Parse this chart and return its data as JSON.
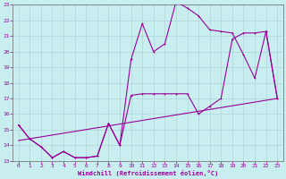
{
  "xlabel": "Windchill (Refroidissement éolien,°C)",
  "bg_color": "#c8eef0",
  "grid_color": "#b0d4d8",
  "line_color": "#990099",
  "xlim": [
    -0.5,
    23.5
  ],
  "ylim": [
    13,
    23
  ],
  "xticks": [
    0,
    1,
    2,
    3,
    4,
    5,
    6,
    7,
    8,
    9,
    10,
    11,
    12,
    13,
    14,
    15,
    16,
    17,
    18,
    19,
    20,
    21,
    22,
    23
  ],
  "yticks": [
    13,
    14,
    15,
    16,
    17,
    18,
    19,
    20,
    21,
    22,
    23
  ],
  "upper_line_x": [
    0,
    1,
    2,
    3,
    4,
    5,
    6,
    7,
    8,
    9,
    10,
    11,
    12,
    13,
    14,
    15,
    16,
    17,
    18,
    19,
    20,
    21,
    22,
    23
  ],
  "upper_line_y": [
    15.3,
    14.4,
    13.9,
    13.2,
    13.6,
    13.2,
    13.2,
    13.3,
    15.4,
    14.0,
    19.5,
    21.8,
    20.0,
    20.5,
    23.2,
    22.8,
    22.3,
    21.4,
    21.3,
    21.2,
    19.8,
    18.3,
    21.3,
    17.0
  ],
  "lower_line_x": [
    0,
    1,
    2,
    3,
    4,
    5,
    6,
    7,
    8,
    9,
    10,
    11,
    12,
    13,
    14,
    15,
    16,
    17,
    18,
    19,
    20,
    21,
    22,
    23
  ],
  "lower_line_y": [
    15.3,
    14.4,
    13.9,
    13.2,
    13.6,
    13.2,
    13.2,
    13.3,
    15.4,
    14.0,
    17.2,
    17.3,
    17.3,
    17.3,
    17.3,
    17.3,
    16.0,
    16.5,
    17.0,
    20.8,
    21.2,
    21.2,
    21.3,
    17.0
  ],
  "straight_line_x": [
    0,
    23
  ],
  "straight_line_y": [
    14.3,
    17.0
  ]
}
